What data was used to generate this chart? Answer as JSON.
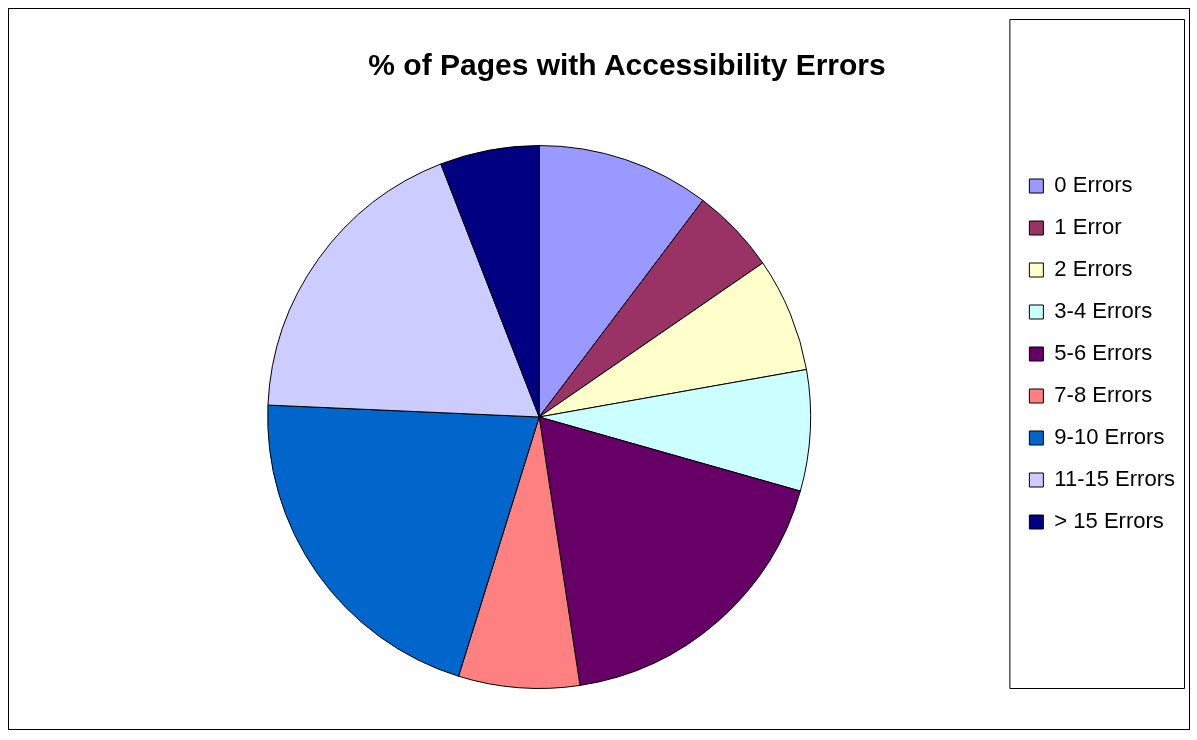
{
  "chart_data": {
    "type": "pie",
    "title": "% of Pages with Accessibility Errors",
    "categories": [
      "0 Errors",
      "1 Error",
      "2 Errors",
      "3-4 Errors",
      "5-6 Errors",
      "7-8 Errors",
      "9-10 Errors",
      "11-15 Errors",
      "> 15 Errors"
    ],
    "values": [
      10.3,
      5.1,
      6.8,
      7.2,
      18.2,
      7.2,
      20.9,
      18.4,
      5.9
    ],
    "colors": [
      "#9999ff",
      "#993366",
      "#ffffcc",
      "#ccffff",
      "#660066",
      "#ff8080",
      "#0066cc",
      "#ccccff",
      "#000080"
    ],
    "legend": "right"
  }
}
